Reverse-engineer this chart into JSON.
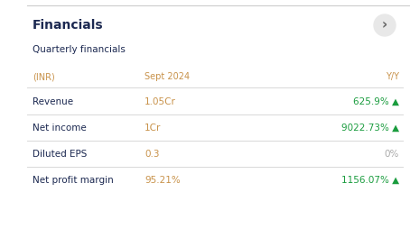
{
  "title": "Financials",
  "subtitle": "Quarterly financials",
  "header": [
    "(INR)",
    "Sept 2024",
    "Y/Y"
  ],
  "rows": [
    {
      "label": "Revenue",
      "value": "1.05Cr",
      "yy": "625.9%",
      "arrow": "▲",
      "yy_color": "#1a9c3e"
    },
    {
      "label": "Net income",
      "value": "1Cr",
      "yy": "9022.73%",
      "arrow": "▲",
      "yy_color": "#1a9c3e"
    },
    {
      "label": "Diluted EPS",
      "value": "0.3",
      "yy": "0%",
      "arrow": "",
      "yy_color": "#aaaaaa"
    },
    {
      "label": "Net profit margin",
      "value": "95.21%",
      "yy": "1156.07%",
      "arrow": "▲",
      "yy_color": "#1a9c3e"
    }
  ],
  "bg_color": "#ffffff",
  "title_color": "#1c2951",
  "subtitle_color": "#1c2951",
  "header_color": "#c8924a",
  "label_color": "#1c2951",
  "value_color": "#c8924a",
  "divider_color": "#d8d8d8",
  "header_yy_color": "#c8924a",
  "zero_yy_color": "#aaaaaa",
  "chevron_bg": "#e8e8e8",
  "chevron_color": "#666666",
  "top_line_color": "#cccccc"
}
